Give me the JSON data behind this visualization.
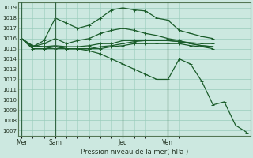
{
  "xlabel": "Pression niveau de la mer( hPa )",
  "ylim": [
    1006.5,
    1019.5
  ],
  "yticks": [
    1007,
    1008,
    1009,
    1010,
    1011,
    1012,
    1013,
    1014,
    1015,
    1016,
    1017,
    1018,
    1019
  ],
  "bg_color": "#cce8e0",
  "plot_bg_color": "#cce8e0",
  "grid_color": "#99ccbb",
  "line_color": "#1a5c2a",
  "xtick_labels": [
    "Mer",
    "Sam",
    "Jeu",
    "Ven"
  ],
  "xtick_positions": [
    0,
    3,
    9,
    13
  ],
  "vline_positions": [
    0,
    3,
    9,
    13
  ],
  "upper_x": [
    0,
    1,
    2,
    3,
    4,
    5,
    6,
    7,
    8,
    9,
    10,
    11,
    12,
    13,
    14,
    15,
    16,
    17
  ],
  "upper_y": [
    1016.0,
    1015.2,
    1015.8,
    1018.0,
    1017.5,
    1017.0,
    1017.3,
    1018.0,
    1018.8,
    1019.0,
    1018.8,
    1018.7,
    1018.0,
    1017.8,
    1016.8,
    1016.5,
    1016.2,
    1016.0
  ],
  "mid_x": [
    0,
    1,
    2,
    3,
    4,
    5,
    6,
    7,
    8,
    9,
    10,
    11,
    12,
    13,
    14,
    15,
    16,
    17
  ],
  "mid_y": [
    1016.0,
    1015.2,
    1015.5,
    1016.0,
    1015.5,
    1015.8,
    1016.0,
    1016.5,
    1016.8,
    1017.0,
    1016.8,
    1016.5,
    1016.3,
    1016.0,
    1015.8,
    1015.5,
    1015.3,
    1015.2
  ],
  "flat1_x": [
    0,
    1,
    2,
    3,
    4,
    5,
    6,
    7,
    8,
    9,
    10,
    11,
    12,
    13,
    14,
    15,
    16,
    17
  ],
  "flat1_y": [
    1016.0,
    1015.3,
    1015.2,
    1015.2,
    1015.0,
    1015.0,
    1015.0,
    1015.2,
    1015.3,
    1015.5,
    1015.7,
    1015.8,
    1015.8,
    1015.8,
    1015.7,
    1015.6,
    1015.5,
    1015.5
  ],
  "flat2_x": [
    0,
    1,
    2,
    3,
    4,
    5,
    6,
    7,
    8,
    9,
    10,
    11,
    12,
    13,
    14,
    15,
    16,
    17
  ],
  "flat2_y": [
    1016.0,
    1015.0,
    1015.0,
    1015.0,
    1015.0,
    1015.0,
    1015.0,
    1015.0,
    1015.2,
    1015.3,
    1015.5,
    1015.5,
    1015.5,
    1015.5,
    1015.5,
    1015.3,
    1015.2,
    1015.0
  ],
  "flat3_x": [
    0,
    1,
    2,
    3,
    4,
    5,
    6,
    7,
    8,
    9,
    10,
    11,
    12,
    13,
    14,
    15,
    16,
    17
  ],
  "flat3_y": [
    1016.0,
    1015.2,
    1015.2,
    1015.3,
    1015.2,
    1015.2,
    1015.3,
    1015.5,
    1015.5,
    1015.8,
    1015.8,
    1015.8,
    1015.8,
    1015.8,
    1015.7,
    1015.5,
    1015.3,
    1015.2
  ],
  "drop_x": [
    0,
    1,
    2,
    3,
    4,
    5,
    6,
    7,
    8,
    9,
    10,
    11,
    12,
    13,
    14,
    15,
    16,
    17,
    18,
    19,
    20
  ],
  "drop_y": [
    1016.0,
    1015.0,
    1015.0,
    1015.2,
    1015.0,
    1015.0,
    1014.8,
    1014.5,
    1014.0,
    1013.5,
    1013.0,
    1012.5,
    1012.0,
    1012.0,
    1014.0,
    1013.5,
    1011.8,
    1009.5,
    1009.8,
    1007.5,
    1006.8
  ],
  "xlim": [
    -0.3,
    20.3
  ],
  "marker": "+"
}
